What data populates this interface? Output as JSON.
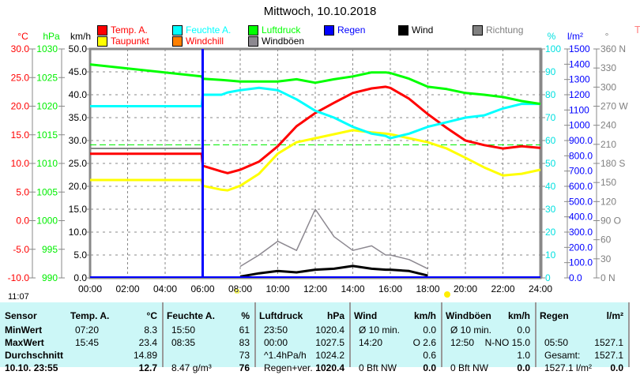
{
  "title": "Mittwoch, 10.10.2018",
  "legend": [
    {
      "label": "Temp. A.",
      "color": "#ff0000",
      "text_color": "#ff0000"
    },
    {
      "label": "Feuchte A.",
      "color": "#00ffff",
      "text_color": "#00ffff"
    },
    {
      "label": "Luftdruck",
      "color": "#00ff00",
      "text_color": "#00ff00"
    },
    {
      "label": "Regen",
      "color": "#0000ff",
      "text_color": "#0000ff"
    },
    {
      "label": "Wind",
      "color": "#000000",
      "text_color": "#000000"
    },
    {
      "label": "Richtung",
      "color": "#808080",
      "text_color": "#808080"
    },
    {
      "label": "Taupunkt",
      "color": "#ffff00",
      "text_color": "#ff0000"
    },
    {
      "label": "Windchill",
      "color": "#ff8000",
      "text_color": "#ff0000"
    },
    {
      "label": "Windböen",
      "color": "#8c8890",
      "text_color": "#000000"
    }
  ],
  "chart_data": {
    "type": "line",
    "title": "Mittwoch, 10.10.2018",
    "x_ticks": [
      "00:00",
      "02:00",
      "04:00",
      "06:00",
      "08:00",
      "10:00",
      "12:00",
      "14:00",
      "16:00",
      "18:00",
      "20:00",
      "22:00",
      "24:00"
    ],
    "x_range_hours": [
      0,
      24
    ],
    "axes": {
      "temp": {
        "unit": "°C",
        "range": [
          -10,
          30
        ],
        "ticks": [
          "30.0",
          "25.0",
          "20.0",
          "15.0",
          "10.0",
          "5.0",
          "0.0",
          "-5.0",
          "-10.0"
        ],
        "color": "#ff0000"
      },
      "pressure": {
        "unit": "hPa",
        "range": [
          990,
          1030
        ],
        "ticks": [
          "1030",
          "1025",
          "1020",
          "1015",
          "1010",
          "1005",
          "1000",
          "995",
          "990"
        ],
        "color": "#00ee00"
      },
      "wind": {
        "unit": "km/h",
        "range": [
          0,
          50
        ],
        "ticks": [
          "50.0",
          "45.0",
          "40.0",
          "35.0",
          "30.0",
          "25.0",
          "20.0",
          "15.0",
          "10.0",
          "5.0",
          "0.0"
        ],
        "color": "#000000"
      },
      "humidity": {
        "unit": "%",
        "range": [
          0,
          100
        ],
        "ticks": [
          "100",
          "90",
          "80",
          "70",
          "60",
          "50",
          "40",
          "30",
          "20",
          "10",
          "0"
        ],
        "color": "#00e0e0"
      },
      "rain": {
        "unit": "l/m²",
        "range": [
          0,
          1500
        ],
        "ticks": [
          "1500",
          "1400",
          "1300",
          "1200",
          "1100",
          "1000",
          "900.0",
          "800.0",
          "700.0",
          "600.0",
          "500.0",
          "400.0",
          "300.0",
          "200.0",
          "100.0",
          "0.0"
        ],
        "color": "#0000ff"
      },
      "direction": {
        "unit": "°",
        "range": [
          0,
          360
        ],
        "ticks": [
          "360 N",
          "330",
          "300",
          "270 W",
          "240",
          "210",
          "180 S",
          "150",
          "120",
          "90  O",
          "60",
          "30",
          "0   N"
        ],
        "color": "#808080"
      }
    },
    "x_hours": [
      0,
      5.95,
      6,
      7,
      7.33,
      8,
      9,
      10,
      11,
      12,
      13,
      14,
      15,
      15.75,
      16,
      17,
      18,
      19,
      20,
      21,
      22,
      23,
      24
    ],
    "series": [
      {
        "name": "Temp. A.",
        "axis": "temp",
        "color": "#ff0000",
        "values": [
          11.7,
          11.7,
          9.6,
          8.6,
          8.3,
          8.9,
          10.3,
          13.0,
          16.5,
          18.8,
          20.6,
          22.3,
          23.1,
          23.4,
          23.2,
          21.3,
          18.6,
          16.2,
          14.0,
          13.2,
          12.6,
          13.0,
          12.7
        ]
      },
      {
        "name": "Taupunkt",
        "axis": "temp",
        "color": "#ffff00",
        "values": [
          7.1,
          7.1,
          6.1,
          5.4,
          5.3,
          6.1,
          8.2,
          11.7,
          13.7,
          14.4,
          15.1,
          15.8,
          15.4,
          15.2,
          15.1,
          14.4,
          13.7,
          12.6,
          11.0,
          9.3,
          7.9,
          8.2,
          8.9
        ]
      },
      {
        "name": "Feuchte A.",
        "axis": "humidity",
        "color": "#00ffff",
        "values": [
          75,
          75,
          80,
          80,
          81,
          82,
          83,
          82,
          78,
          73,
          70,
          66,
          63,
          62,
          61,
          63,
          66,
          68,
          70,
          71,
          74,
          76,
          76
        ]
      },
      {
        "name": "Luftdruck",
        "axis": "pressure",
        "color": "#00ff00",
        "values": [
          1027.3,
          1025.2,
          1024.8,
          1024.6,
          1024.5,
          1024.3,
          1024.3,
          1024.3,
          1024.7,
          1024.1,
          1024.7,
          1025.2,
          1025.9,
          1025.9,
          1025.8,
          1024.8,
          1023.4,
          1023.0,
          1022.3,
          1022.0,
          1021.6,
          1020.9,
          1020.4
        ]
      },
      {
        "name": "Wind",
        "axis": "wind",
        "color": "#000000",
        "values": [
          null,
          null,
          null,
          null,
          null,
          0.3,
          1.0,
          1.5,
          1.2,
          1.8,
          2.0,
          2.6,
          2.0,
          1.8,
          1.8,
          1.5,
          0.5,
          null,
          null,
          null,
          null,
          null,
          null
        ]
      },
      {
        "name": "Windböen",
        "axis": "wind",
        "color": "#8c8890",
        "values": [
          null,
          null,
          null,
          null,
          null,
          2.5,
          5,
          8,
          6,
          15,
          9,
          6,
          7,
          5,
          5,
          4,
          2,
          null,
          null,
          null,
          null,
          null,
          null
        ]
      }
    ],
    "rain_marker_hour": 6,
    "pressure_reference": 1013.25
  },
  "markers": {
    "sunrise": "11:07"
  },
  "table": {
    "cols": [
      {
        "h1": "Sensor",
        "h2": "",
        "rows": [
          [
            "MinWert",
            "",
            ""
          ],
          [
            "MaxWert",
            "",
            ""
          ],
          [
            "Durchschnitt",
            "",
            ""
          ],
          [
            "10.10. 23:55",
            "",
            ""
          ]
        ]
      },
      {
        "h1": "Temp. A.",
        "h2": "°C",
        "rows": [
          [
            "07:20",
            "8.3"
          ],
          [
            "15:45",
            "23.4"
          ],
          [
            "",
            "14.89"
          ],
          [
            "",
            "12.7"
          ]
        ]
      },
      {
        "h1": "Feuchte A.",
        "h2": "%",
        "rows": [
          [
            "15:50",
            "61"
          ],
          [
            "08:35",
            "83"
          ],
          [
            "",
            "73"
          ],
          [
            "8.47 g/m³",
            "76"
          ]
        ]
      },
      {
        "h1": "Luftdruck",
        "h2": "hPa",
        "rows": [
          [
            "23:50",
            "1020.4"
          ],
          [
            "00:00",
            "1027.5"
          ],
          [
            "^1.4hPa/h",
            "1024.2"
          ],
          [
            "Regen+ver.",
            "1020.4"
          ]
        ]
      },
      {
        "h1": "Wind",
        "h2": "km/h",
        "rows": [
          [
            "Ø 10 min.",
            "0.0"
          ],
          [
            "14:20",
            "O 2.6"
          ],
          [
            "",
            "0.6"
          ],
          [
            "0 Bft NW",
            "0.0"
          ]
        ]
      },
      {
        "h1": "Windböen",
        "h2": "km/h",
        "rows": [
          [
            "Ø 10 min.",
            "0.0"
          ],
          [
            "12:50",
            "N-NO 15.0"
          ],
          [
            "",
            "1.0"
          ],
          [
            "0 Bft NW",
            "0.0"
          ]
        ]
      },
      {
        "h1": "Regen",
        "h2": "l/m²",
        "rows": [
          [
            "",
            ""
          ],
          [
            "05:50",
            "1527.1"
          ],
          [
            "Gesamt:",
            "1527.1"
          ],
          [
            "1527.1 l/m²",
            "0.0"
          ]
        ]
      }
    ]
  }
}
